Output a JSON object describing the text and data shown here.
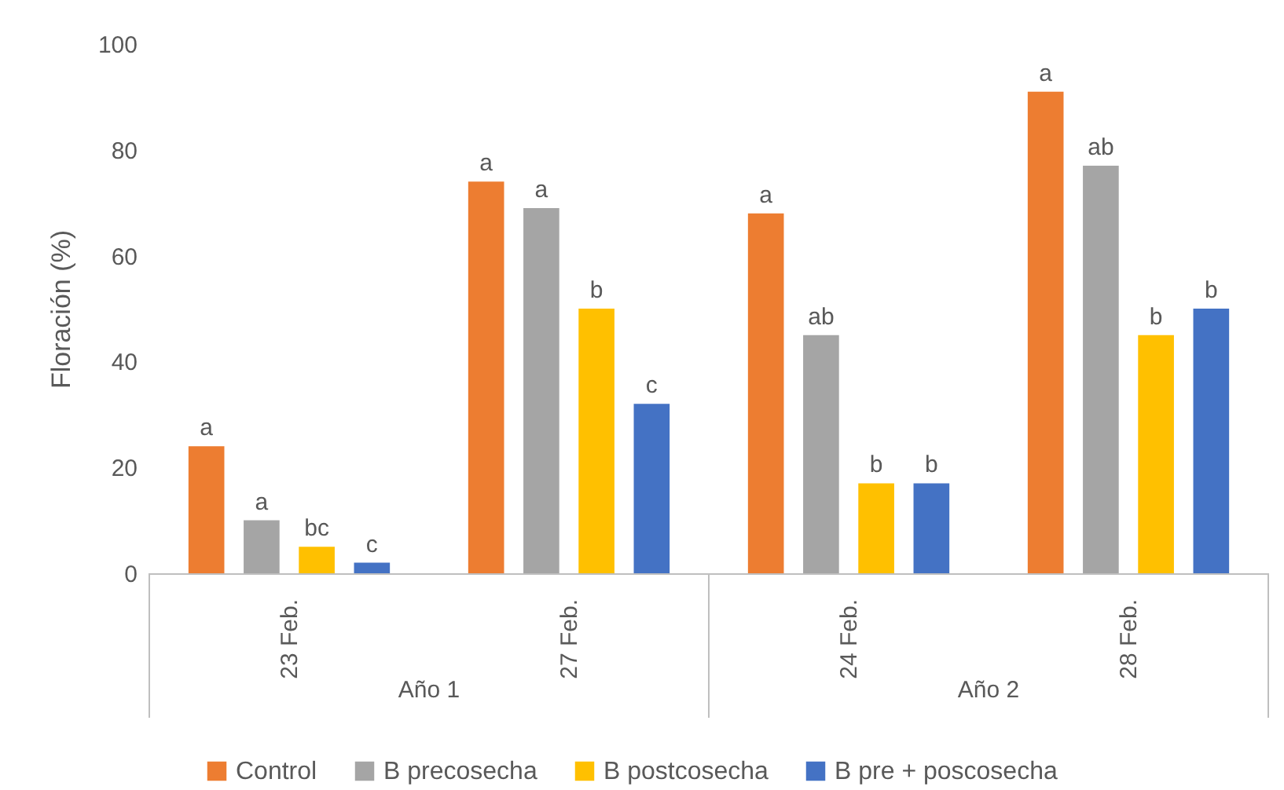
{
  "chart_data": {
    "type": "bar",
    "ylabel": "Floración (%)",
    "categories": [
      "23 Feb.",
      "27 Feb.",
      "24 Feb.",
      "28 Feb."
    ],
    "series": [
      {
        "name": "Control",
        "color": "#ed7d31",
        "values": [
          24,
          74,
          68,
          91
        ],
        "value_labels": [
          "a",
          "a",
          "a",
          "a"
        ]
      },
      {
        "name": "B precosecha",
        "color": "#a5a5a5",
        "values": [
          10,
          69,
          45,
          77
        ],
        "value_labels": [
          "a",
          "a",
          "ab",
          "ab"
        ]
      },
      {
        "name": "B postcosecha",
        "color": "#ffc000",
        "values": [
          5,
          50,
          17,
          45
        ],
        "value_labels": [
          "bc",
          "b",
          "b",
          "b"
        ]
      },
      {
        "name": "B pre + poscosecha",
        "color": "#4472c4",
        "values": [
          2,
          32,
          17,
          50
        ],
        "value_labels": [
          "c",
          "c",
          "b",
          "b"
        ]
      }
    ],
    "annotations": [
      "Año 1",
      "Año 2"
    ],
    "ylim": [
      0,
      100
    ],
    "yticks": [
      0,
      20,
      40,
      60,
      80,
      100
    ],
    "legend": "bottom"
  }
}
